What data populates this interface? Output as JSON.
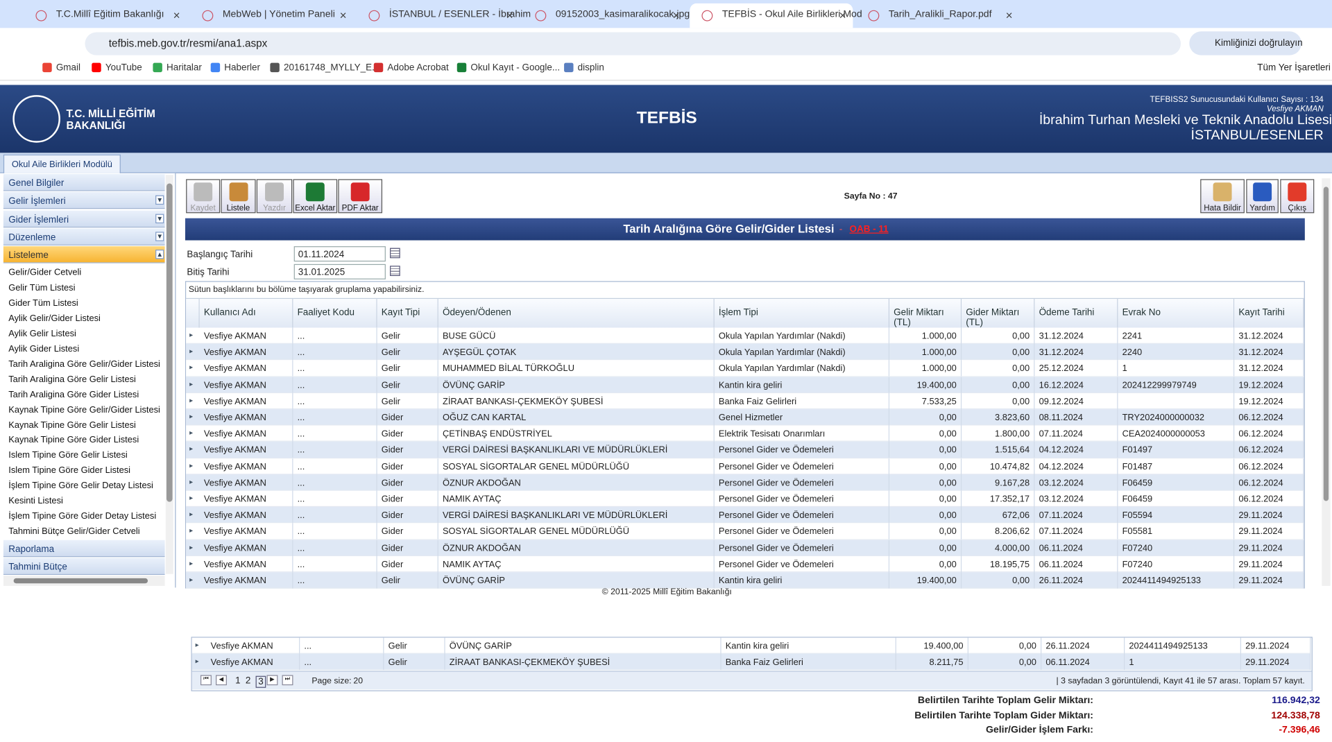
{
  "browser": {
    "tabs": [
      "T.C.Millî Eğitim Bakanlığı",
      "MebWeb | Yönetim Paneli",
      "İSTANBUL / ESENLER - İbrahim",
      "09152003_kasimaralikocak.jpg",
      "TEFBİS - Okul Aile Birlikleri Mod",
      "Tarih_Aralikli_Rapor.pdf"
    ],
    "active_tab": 4,
    "url": "tefbis.meb.gov.tr/resmi/ana1.aspx",
    "profile": "Kimliğinizi doğrulayın",
    "bookmarks": [
      "Gmail",
      "YouTube",
      "Haritalar",
      "Haberler",
      "20161748_MYLLY_E...",
      "Adobe Acrobat",
      "Okul Kayıt - Google...",
      "displin"
    ],
    "all_bookmarks": "Tüm Yer İşaretleri"
  },
  "header": {
    "logo_line1": "T.C. MİLLİ EĞİTİM",
    "logo_line2": "BAKANLIĞI",
    "app": "TEFBİS",
    "user_count": "TEFBISS2 Sunucusundaki Kullanıcı Sayısı : 134",
    "user": "Vesfiye AKMAN",
    "school": "İbrahim Turhan Mesleki ve Teknik Anadolu Lisesi",
    "location": "İSTANBUL/ESENLER",
    "module": "Okul Aile Birlikleri Modülü"
  },
  "sidebar": {
    "menus_top": [
      "Genel Bilgiler",
      "Gelir İşlemleri",
      "Gider İşlemleri",
      "Düzenleme",
      "Listeleme"
    ],
    "items": [
      "Gelir/Gider Cetveli",
      "Gelir Tüm Listesi",
      "Gider Tüm Listesi",
      "Aylik Gelir/Gider Listesi",
      "Aylik Gelir Listesi",
      "Aylik Gider Listesi",
      "Tarih Araligina Göre Gelir/Gider Listesi",
      "Tarih Araligina Göre Gelir Listesi",
      "Tarih Araligina Göre Gider Listesi",
      "Kaynak Tipine Göre Gelir/Gider Listesi",
      "Kaynak Tipine Göre Gelir Listesi",
      "Kaynak Tipine Göre Gider Listesi",
      "Islem Tipine Göre Gelir Listesi",
      "Islem Tipine Göre Gider Listesi",
      "İşlem Tipine Göre Gelir Detay Listesi",
      "Kesinti Listesi",
      "İşlem Tipine Göre Gider Detay Listesi",
      "Tahmini Bütçe Gelir/Gider Cetveli"
    ],
    "menus_bottom": [
      "Raporlama",
      "Tahmini Bütçe"
    ]
  },
  "toolbar": {
    "left": [
      "Kaydet",
      "Listele",
      "Yazdır",
      "Excel Aktar",
      "PDF Aktar"
    ],
    "page_no": "Sayfa No : 47",
    "right": [
      "Hata Bildir",
      "Yardım",
      "Çıkış"
    ]
  },
  "report": {
    "title": "Tarih Aralığına Göre Gelir/Gider Listesi",
    "separator": "-",
    "code": "OAB - 11",
    "start_label": "Başlangıç Tarihi",
    "start_date": "01.11.2024",
    "end_label": "Bitiş Tarihi",
    "end_date": "31.01.2025",
    "group_hint": "Sütun başlıklarını bu bölüme taşıyarak gruplama yapabilirsiniz."
  },
  "table": {
    "columns": [
      "Kullanıcı Adı",
      "Faaliyet Kodu",
      "Kayıt Tipi",
      "Ödeyen/Ödenen",
      "İşlem Tipi",
      "Gelir Miktarı (TL)",
      "Gider Miktarı (TL)",
      "Ödeme Tarihi",
      "Evrak No",
      "Kayıt Tarihi"
    ],
    "rows": [
      [
        "Vesfiye AKMAN",
        "...",
        "Gelir",
        "BUSE GÜCÜ",
        "Okula Yapılan Yardımlar (Nakdi)",
        "1.000,00",
        "0,00",
        "31.12.2024",
        "2241",
        "31.12.2024"
      ],
      [
        "Vesfiye AKMAN",
        "...",
        "Gelir",
        "AYŞEGÜL ÇOTAK",
        "Okula Yapılan Yardımlar (Nakdi)",
        "1.000,00",
        "0,00",
        "31.12.2024",
        "2240",
        "31.12.2024"
      ],
      [
        "Vesfiye AKMAN",
        "...",
        "Gelir",
        "MUHAMMED BİLAL TÜRKOĞLU",
        "Okula Yapılan Yardımlar (Nakdi)",
        "1.000,00",
        "0,00",
        "25.12.2024",
        "1",
        "31.12.2024"
      ],
      [
        "Vesfiye AKMAN",
        "...",
        "Gelir",
        "ÖVÜNÇ GARİP",
        "Kantin kira geliri",
        "19.400,00",
        "0,00",
        "16.12.2024",
        "202412299979749",
        "19.12.2024"
      ],
      [
        "Vesfiye AKMAN",
        "...",
        "Gelir",
        "ZİRAAT BANKASI-ÇEKMEKÖY ŞUBESİ",
        "Banka Faiz Gelirleri",
        "7.533,25",
        "0,00",
        "09.12.2024",
        null,
        "19.12.2024"
      ],
      [
        "Vesfiye AKMAN",
        "...",
        "Gider",
        "OĞUZ CAN KARTAL",
        "Genel Hizmetler",
        "0,00",
        "3.823,60",
        "08.11.2024",
        "TRY2024000000032",
        "06.12.2024"
      ],
      [
        "Vesfiye AKMAN",
        "...",
        "Gider",
        "ÇETİNBAŞ ENDÜSTRİYEL",
        "Elektrik Tesisatı Onarımları",
        "0,00",
        "1.800,00",
        "07.11.2024",
        "CEA2024000000053",
        "06.12.2024"
      ],
      [
        "Vesfiye AKMAN",
        "...",
        "Gider",
        "VERGİ DAİRESİ BAŞKANLIKLARI VE MÜDÜRLÜKLERİ",
        "Personel Gider ve Ödemeleri",
        "0,00",
        "1.515,64",
        "04.12.2024",
        "F01497",
        "06.12.2024"
      ],
      [
        "Vesfiye AKMAN",
        "...",
        "Gider",
        "SOSYAL SİGORTALAR GENEL MÜDÜRLÜĞÜ",
        "Personel Gider ve Ödemeleri",
        "0,00",
        "10.474,82",
        "04.12.2024",
        "F01487",
        "06.12.2024"
      ],
      [
        "Vesfiye AKMAN",
        "...",
        "Gider",
        "ÖZNUR AKDOĞAN",
        "Personel Gider ve Ödemeleri",
        "0,00",
        "9.167,28",
        "03.12.2024",
        "F06459",
        "06.12.2024"
      ],
      [
        "Vesfiye AKMAN",
        "...",
        "Gider",
        "NAMIK AYTAÇ",
        "Personel Gider ve Ödemeleri",
        "0,00",
        "17.352,17",
        "03.12.2024",
        "F06459",
        "06.12.2024"
      ],
      [
        "Vesfiye AKMAN",
        "...",
        "Gider",
        "VERGİ DAİRESİ BAŞKANLIKLARI VE MÜDÜRLÜKLERİ",
        "Personel Gider ve Ödemeleri",
        "0,00",
        "672,06",
        "07.11.2024",
        "F05594",
        "29.11.2024"
      ],
      [
        "Vesfiye AKMAN",
        "...",
        "Gider",
        "SOSYAL SİGORTALAR GENEL MÜDÜRLÜĞÜ",
        "Personel Gider ve Ödemeleri",
        "0,00",
        "8.206,62",
        "07.11.2024",
        "F05581",
        "29.11.2024"
      ],
      [
        "Vesfiye AKMAN",
        "...",
        "Gider",
        "ÖZNUR AKDOĞAN",
        "Personel Gider ve Ödemeleri",
        "0,00",
        "4.000,00",
        "06.11.2024",
        "F07240",
        "29.11.2024"
      ],
      [
        "Vesfiye AKMAN",
        "...",
        "Gider",
        "NAMIK AYTAÇ",
        "Personel Gider ve Ödemeleri",
        "0,00",
        "18.195,75",
        "06.11.2024",
        "F07240",
        "29.11.2024"
      ],
      [
        "Vesfiye AKMAN",
        "...",
        "Gelir",
        "ÖVÜNÇ GARİP",
        "Kantin kira geliri",
        "19.400,00",
        "0,00",
        "26.11.2024",
        "2024411494925133",
        "29.11.2024"
      ]
    ]
  },
  "copyright": "© 2011-2025 Millî Eğitim Bakanlığı",
  "lower_table": {
    "rows": [
      [
        "Vesfiye AKMAN",
        "...",
        "Gelir",
        "ÖVÜNÇ GARİP",
        "Kantin kira geliri",
        "19.400,00",
        "0,00",
        "26.11.2024",
        "2024411494925133",
        "29.11.2024"
      ],
      [
        "Vesfiye AKMAN",
        "...",
        "Gelir",
        "ZİRAAT BANKASI-ÇEKMEKÖY ŞUBESİ",
        "Banka Faiz Gelirleri",
        "8.211,75",
        "0,00",
        "06.11.2024",
        "1",
        "29.11.2024"
      ]
    ],
    "pages": [
      "1",
      "2",
      "3"
    ],
    "page_size_label": "Page size:",
    "page_size": "20",
    "status": "| 3 sayfadan 3 görüntülendi, Kayıt 41 ile 57 arası. Toplam 57 kayıt."
  },
  "totals": [
    {
      "label": "Belirtilen Tarihte Toplam Gelir Miktarı:",
      "value": "116.942,32"
    },
    {
      "label": "Belirtilen Tarihte Toplam Gider Miktarı:",
      "value": "124.338,78"
    },
    {
      "label": "Gelir/Gider İşlem Farkı:",
      "value": "-7.396,46"
    }
  ]
}
